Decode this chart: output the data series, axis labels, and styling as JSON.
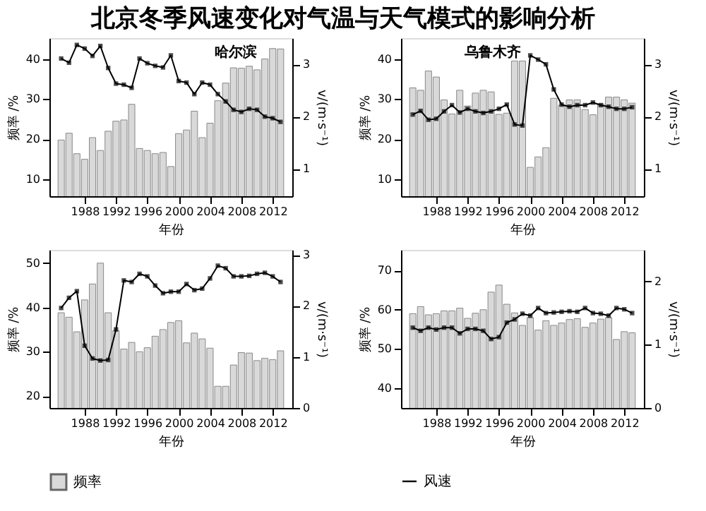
{
  "chart_data": [
    {
      "type": "bar",
      "title": "北京冬季风速变化对气温与天气模式的影响分析",
      "annotations": [
        "哈尔滨"
      ],
      "xlabel": "年份",
      "ylabel": "频率 /%",
      "y2label": "v/(m·s⁻¹)",
      "x": [
        1985,
        1986,
        1987,
        1988,
        1989,
        1990,
        1991,
        1992,
        1993,
        1994,
        1995,
        1996,
        1997,
        1998,
        1999,
        2000,
        2001,
        2002,
        2003,
        2004,
        2005,
        2006,
        2007,
        2008,
        2009,
        2010,
        2011,
        2012,
        2013
      ],
      "xlim": [
        1984.4,
        2013.6
      ],
      "xticks": [
        1988,
        1992,
        1996,
        2000,
        2004,
        2008,
        2012
      ],
      "ylim": [
        5.8,
        45.2
      ],
      "yticks": [
        10,
        20,
        30,
        40
      ],
      "y2lim": [
        0.48,
        3.5
      ],
      "y2ticks": [
        1,
        2,
        3
      ],
      "grid": false,
      "series": [
        {
          "color": "#d9d9d9",
          "values": [
            19.8,
            21.5,
            16.4,
            15,
            20.4,
            17.2,
            22,
            24.5,
            24.8,
            28.7,
            17.7,
            17.2,
            16.4,
            16.7,
            13.2,
            21.4,
            22.3,
            27,
            20.4,
            24,
            29.6,
            34,
            37.8,
            37.7,
            38.2,
            37.3,
            40,
            42.6,
            42.5
          ]
        },
        {
          "type": "line",
          "axis": "y2",
          "color": "#000000",
          "marker": "square",
          "values": [
            3.11,
            3.03,
            3.37,
            3.3,
            3.16,
            3.35,
            2.93,
            2.63,
            2.61,
            2.55,
            3.11,
            3.02,
            2.97,
            2.94,
            3.17,
            2.68,
            2.65,
            2.43,
            2.65,
            2.61,
            2.43,
            2.29,
            2.13,
            2.09,
            2.15,
            2.13,
            2.0,
            1.97,
            1.9
          ]
        }
      ]
    },
    {
      "type": "bar",
      "annotations": [
        "乌鲁木齐"
      ],
      "xlabel": "年份",
      "ylabel": "频率 /%",
      "y2label": "v/(m·s⁻¹)",
      "x": [
        1985,
        1986,
        1987,
        1988,
        1989,
        1990,
        1991,
        1992,
        1993,
        1994,
        1995,
        1996,
        1997,
        1998,
        1999,
        2000,
        2001,
        2002,
        2003,
        2004,
        2005,
        2006,
        2007,
        2008,
        2009,
        2010,
        2011,
        2012,
        2013
      ],
      "xlim": [
        1984.4,
        2013.6
      ],
      "xticks": [
        1988,
        1992,
        1996,
        2000,
        2004,
        2008,
        2012
      ],
      "ylim": [
        5.8,
        45.2
      ],
      "yticks": [
        10,
        20,
        30,
        40
      ],
      "y2lim": [
        0.48,
        3.5
      ],
      "y2ticks": [
        1,
        2,
        3
      ],
      "grid": false,
      "series": [
        {
          "color": "#d9d9d9",
          "values": [
            32.8,
            32.2,
            37,
            35.5,
            29.8,
            26.3,
            32.2,
            28.3,
            31.5,
            32.2,
            31.8,
            26.2,
            26.5,
            39.5,
            39.5,
            13,
            15.6,
            17.9,
            30.2,
            28.5,
            29.8,
            29.8,
            27.4,
            26.1,
            28.8,
            30.5,
            30.5,
            29.8,
            29
          ]
        },
        {
          "type": "line",
          "axis": "y2",
          "color": "#000000",
          "marker": "square",
          "values": [
            2.04,
            2.11,
            1.94,
            1.96,
            2.1,
            2.22,
            2.08,
            2.15,
            2.1,
            2.07,
            2.1,
            2.15,
            2.23,
            1.85,
            1.83,
            3.17,
            3.09,
            3.0,
            2.52,
            2.23,
            2.19,
            2.22,
            2.22,
            2.27,
            2.22,
            2.19,
            2.15,
            2.15,
            2.18
          ]
        }
      ]
    },
    {
      "type": "bar",
      "xlabel": "年份",
      "ylabel": "频率 /%",
      "y2label": "v/(m·s⁻¹)",
      "legend": "bottom",
      "x": [
        1985,
        1986,
        1987,
        1988,
        1989,
        1990,
        1991,
        1992,
        1993,
        1994,
        1995,
        1996,
        1997,
        1998,
        1999,
        2000,
        2001,
        2002,
        2003,
        2004,
        2005,
        2006,
        2007,
        2008,
        2009,
        2010,
        2011,
        2012,
        2013
      ],
      "xlim": [
        1984.4,
        2013.6
      ],
      "xticks": [
        1988,
        1992,
        1996,
        2000,
        2004,
        2008,
        2012
      ],
      "ylim": [
        17.3,
        53
      ],
      "yticks": [
        20,
        30,
        40,
        50
      ],
      "y2lim": [
        0,
        3.1
      ],
      "y2ticks": [
        0,
        1,
        2,
        3
      ],
      "grid": false,
      "series": [
        {
          "name": "频率",
          "color": "#d9d9d9",
          "values": [
            38.8,
            37.8,
            34.5,
            41.7,
            45.3,
            50,
            38.8,
            34.8,
            30.6,
            32.1,
            30,
            30.9,
            33.5,
            35,
            36.6,
            37,
            32,
            34.2,
            32.9,
            30.8,
            22.2,
            22.2,
            27,
            29.8,
            29.7,
            28,
            28.5,
            28.2,
            30.2
          ]
        },
        {
          "type": "line",
          "axis": "y2",
          "color": "#000000",
          "marker": "square",
          "values": [
            1.96,
            2.16,
            2.29,
            1.22,
            0.97,
            0.93,
            0.94,
            1.54,
            2.5,
            2.47,
            2.63,
            2.58,
            2.4,
            2.25,
            2.28,
            2.28,
            2.43,
            2.31,
            2.34,
            2.54,
            2.79,
            2.74,
            2.58,
            2.58,
            2.59,
            2.63,
            2.65,
            2.58,
            2.47
          ]
        }
      ]
    },
    {
      "type": "bar",
      "xlabel": "年份",
      "ylabel": "频率 /%",
      "y2label": "v/(m·s⁻¹)",
      "legend": "bottom",
      "x": [
        1985,
        1986,
        1987,
        1988,
        1989,
        1990,
        1991,
        1992,
        1993,
        1994,
        1995,
        1996,
        1997,
        1998,
        1999,
        2000,
        2001,
        2002,
        2003,
        2004,
        2005,
        2006,
        2007,
        2008,
        2009,
        2010,
        2011,
        2012,
        2013
      ],
      "xlim": [
        1984.4,
        2013.6
      ],
      "xticks": [
        1988,
        1992,
        1996,
        2000,
        2004,
        2008,
        2012
      ],
      "ylim": [
        34.9,
        75.3
      ],
      "yticks": [
        40,
        50,
        60,
        70
      ],
      "y2lim": [
        0,
        2.5
      ],
      "y2ticks": [
        0,
        1,
        2
      ],
      "grid": false,
      "series": [
        {
          "color": "#d9d9d9",
          "values": [
            59,
            60.8,
            58.7,
            59,
            59.7,
            59.7,
            60.4,
            57.8,
            59.1,
            60,
            64.5,
            66.3,
            61.4,
            59.2,
            56,
            58,
            54.8,
            57.2,
            56,
            56.6,
            57.5,
            57.7,
            55.5,
            56.6,
            57.6,
            58,
            52.4,
            54.4,
            54.1
          ]
        },
        {
          "type": "line",
          "axis": "y2",
          "name": "风速",
          "color": "#000000",
          "marker": "square",
          "values": [
            1.27,
            1.22,
            1.27,
            1.24,
            1.27,
            1.27,
            1.18,
            1.25,
            1.25,
            1.22,
            1.09,
            1.12,
            1.35,
            1.4,
            1.49,
            1.46,
            1.58,
            1.5,
            1.51,
            1.52,
            1.53,
            1.52,
            1.58,
            1.5,
            1.49,
            1.46,
            1.58,
            1.56,
            1.5
          ]
        }
      ]
    }
  ]
}
